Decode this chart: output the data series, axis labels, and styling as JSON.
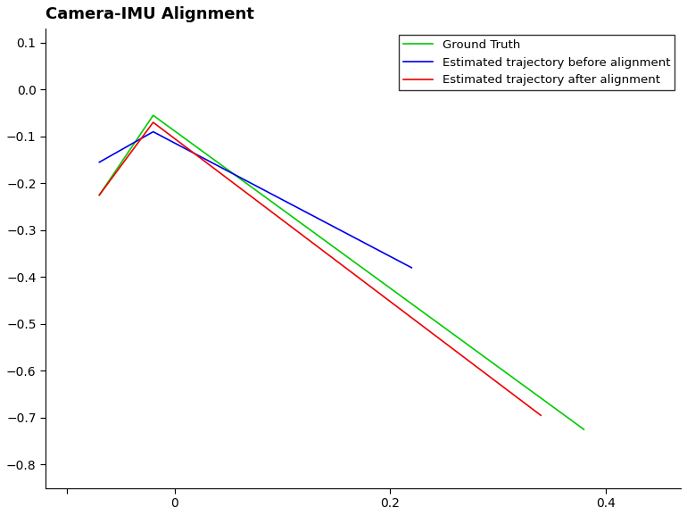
{
  "title": "Camera-IMU Alignment",
  "title_fontsize": 13,
  "title_fontweight": "bold",
  "ground_truth": {
    "x": [
      -0.07,
      -0.02,
      0.38
    ],
    "y": [
      -0.225,
      -0.055,
      -0.725
    ],
    "color": "#00cc00",
    "label": "Ground Truth",
    "linewidth": 1.2
  },
  "before_alignment": {
    "x": [
      -0.07,
      -0.02,
      0.22
    ],
    "y": [
      -0.155,
      -0.09,
      -0.38
    ],
    "color": "#0000ee",
    "label": "Estimated trajectory before alignment",
    "linewidth": 1.2
  },
  "after_alignment": {
    "x": [
      -0.07,
      -0.02,
      0.34
    ],
    "y": [
      -0.225,
      -0.07,
      -0.695
    ],
    "color": "#ee0000",
    "label": "Estimated trajectory after alignment",
    "linewidth": 1.2
  },
  "xlim": [
    -0.12,
    0.47
  ],
  "ylim": [
    -0.85,
    0.13
  ],
  "xticks": [
    -0.1,
    0,
    0.2,
    0.4
  ],
  "xticklabels": [
    "",
    "0",
    "0.2",
    "0.4"
  ],
  "yticks": [
    0.1,
    0,
    -0.1,
    -0.2,
    -0.3,
    -0.4,
    -0.5,
    -0.6,
    -0.7,
    -0.8
  ],
  "legend_loc": "upper right",
  "legend_fontsize": 9.5,
  "background_color": "#ffffff",
  "figsize": [
    7.7,
    5.78
  ],
  "dpi": 100
}
